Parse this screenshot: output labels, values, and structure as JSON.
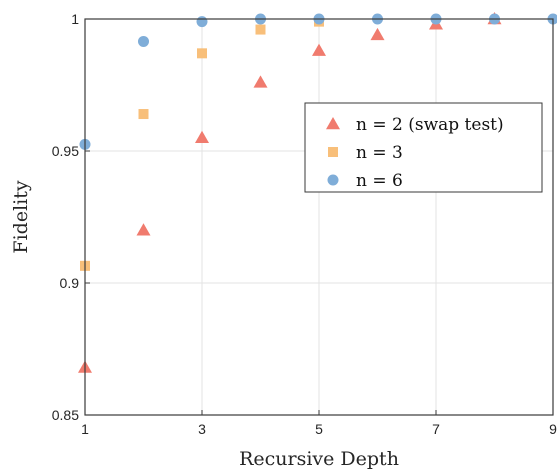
{
  "chart_data": {
    "type": "scatter",
    "title": "",
    "xlabel": "Recursive Depth",
    "ylabel": "Fidelity",
    "xlim": [
      1,
      9
    ],
    "ylim": [
      0.85,
      1.0
    ],
    "xticks": [
      1,
      3,
      5,
      7,
      9
    ],
    "xtick_labels": [
      "1",
      "3",
      "5",
      "7",
      "9"
    ],
    "yticks": [
      0.85,
      0.9,
      0.95,
      1.0
    ],
    "ytick_labels": [
      "0.85",
      "0.9",
      "0.95",
      "1"
    ],
    "grid": true,
    "legend_position": "right-middle",
    "series": [
      {
        "name": "n = 2 (swap test)",
        "marker": "triangle",
        "color": "#F07B6E",
        "x": [
          1,
          2,
          3,
          4,
          5,
          6,
          7,
          8
        ],
        "y": [
          0.868,
          0.92,
          0.955,
          0.976,
          0.988,
          0.994,
          0.998,
          1.0
        ]
      },
      {
        "name": "n = 3",
        "marker": "square",
        "color": "#F8BF7A",
        "x": [
          1,
          2,
          3,
          4,
          5
        ],
        "y": [
          0.9065,
          0.964,
          0.987,
          0.996,
          0.999
        ]
      },
      {
        "name": "n = 6",
        "marker": "circle",
        "color": "#7FADD8",
        "x": [
          1,
          2,
          3,
          4,
          5,
          6,
          7,
          8,
          9
        ],
        "y": [
          0.9525,
          0.9915,
          0.999,
          1.0,
          1.0,
          1.0,
          1.0,
          1.0,
          1.0
        ]
      }
    ]
  }
}
